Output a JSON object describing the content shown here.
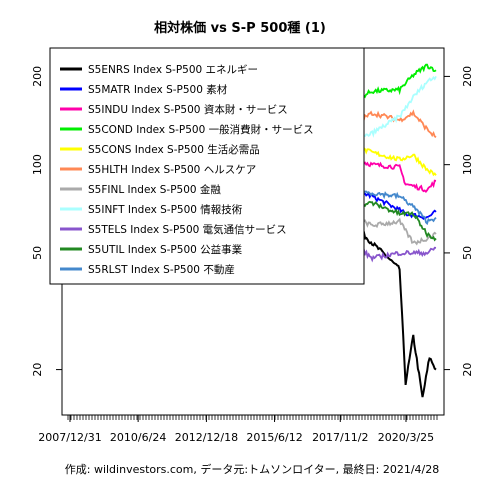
{
  "chart_data": {
    "type": "line",
    "title": "相対株価 vs S-P 500種 (1)",
    "caption": "作成: wildinvestors.com, データ元:トムソンロイター, 最終日: 2021/4/28",
    "y_scale": "log",
    "ylim": [
      14,
      250
    ],
    "y_ticks": [
      20,
      50,
      100,
      200
    ],
    "x_range": [
      "2007-12-31",
      "2021-04-28"
    ],
    "x_tick_labels": [
      "2007/12/31",
      "2010/6/24",
      "2012/12/18",
      "2015/6/12",
      "2017/11/2",
      "2020/3/25"
    ],
    "x_tick_dates": [
      "2007-12-31",
      "2010-06-24",
      "2012-12-18",
      "2015-06-12",
      "2017-11-02",
      "2020-03-25"
    ],
    "grid": false,
    "legend_placement": "top-left",
    "series": [
      {
        "name": "S5ENRS Index S-P500 エネルギー",
        "color": "#000000",
        "x": [
          "2007-12-31",
          "2008-06-30",
          "2008-12-31",
          "2009-06-30",
          "2009-12-31",
          "2010-06-30",
          "2010-12-31",
          "2011-06-30",
          "2011-12-31",
          "2012-06-30",
          "2012-12-31",
          "2013-06-30",
          "2013-12-31",
          "2014-06-30",
          "2014-12-31",
          "2015-06-30",
          "2015-12-31",
          "2016-06-30",
          "2016-12-31",
          "2017-06-30",
          "2017-12-31",
          "2018-06-30",
          "2018-12-31",
          "2019-06-30",
          "2019-12-31",
          "2020-03-20",
          "2020-06-30",
          "2020-10-31",
          "2021-01-31",
          "2021-04-28"
        ],
        "values": [
          100,
          115,
          112,
          102,
          100,
          92,
          98,
          102,
          100,
          90,
          88,
          84,
          85,
          90,
          72,
          68,
          62,
          66,
          72,
          62,
          60,
          60,
          54,
          49,
          44,
          18,
          26,
          16,
          22,
          20
        ]
      },
      {
        "name": "S5MATR Index S-P500 素材",
        "color": "#0000ff",
        "x": [
          "2007-12-31",
          "2008-06-30",
          "2008-12-31",
          "2009-06-30",
          "2009-12-31",
          "2010-12-31",
          "2011-12-31",
          "2012-12-31",
          "2013-12-31",
          "2014-12-31",
          "2015-12-31",
          "2016-12-31",
          "2017-12-31",
          "2018-12-31",
          "2019-12-31",
          "2020-03-20",
          "2020-12-31",
          "2021-04-28"
        ],
        "values": [
          100,
          104,
          88,
          98,
          104,
          106,
          94,
          90,
          86,
          88,
          82,
          84,
          84,
          78,
          70,
          68,
          66,
          69
        ]
      },
      {
        "name": "S5INDU Index S-P500 資本財・サービス",
        "color": "#ff00aa",
        "x": [
          "2007-12-31",
          "2008-12-31",
          "2009-12-31",
          "2010-12-31",
          "2011-12-31",
          "2012-12-31",
          "2013-12-31",
          "2014-12-31",
          "2015-12-31",
          "2016-12-31",
          "2017-12-31",
          "2018-12-31",
          "2019-12-31",
          "2020-03-20",
          "2020-12-31",
          "2021-04-28"
        ],
        "values": [
          100,
          98,
          92,
          100,
          98,
          98,
          108,
          108,
          106,
          108,
          106,
          100,
          98,
          86,
          82,
          88
        ]
      },
      {
        "name": "S5COND Index S-P500 一般消費財・サービス",
        "color": "#00ee00",
        "x": [
          "2007-12-31",
          "2008-12-31",
          "2009-12-31",
          "2010-12-31",
          "2011-12-31",
          "2012-12-31",
          "2013-12-31",
          "2014-12-31",
          "2015-12-31",
          "2016-12-31",
          "2017-12-31",
          "2018-12-31",
          "2019-12-31",
          "2020-06-30",
          "2020-12-31",
          "2021-04-28"
        ],
        "values": [
          100,
          106,
          110,
          122,
          128,
          134,
          142,
          140,
          158,
          156,
          160,
          178,
          180,
          202,
          218,
          210
        ]
      },
      {
        "name": "S5CONS Index S-P500 生活必需品",
        "color": "#ffff00",
        "x": [
          "2007-12-31",
          "2008-12-31",
          "2009-12-31",
          "2010-12-31",
          "2011-12-31",
          "2012-12-31",
          "2013-12-31",
          "2014-12-31",
          "2015-12-31",
          "2016-12-31",
          "2017-12-31",
          "2018-12-31",
          "2019-12-31",
          "2020-06-30",
          "2020-12-31",
          "2021-04-28"
        ],
        "values": [
          100,
          138,
          128,
          126,
          138,
          130,
          128,
          134,
          140,
          128,
          118,
          110,
          104,
          108,
          96,
          92
        ]
      },
      {
        "name": "S5HLTH Index S-P500 ヘルスケア",
        "color": "#ff8855",
        "x": [
          "2007-12-31",
          "2008-12-31",
          "2009-12-31",
          "2010-12-31",
          "2011-12-31",
          "2012-12-31",
          "2013-12-31",
          "2014-12-31",
          "2015-12-31",
          "2016-12-31",
          "2017-12-31",
          "2018-12-31",
          "2019-12-31",
          "2020-06-30",
          "2020-12-31",
          "2021-04-28"
        ],
        "values": [
          100,
          118,
          112,
          104,
          110,
          110,
          122,
          132,
          148,
          134,
          132,
          150,
          142,
          150,
          132,
          124
        ]
      },
      {
        "name": "S5FINL Index S-P500 金融",
        "color": "#aaaaaa",
        "x": [
          "2007-12-31",
          "2008-12-31",
          "2009-03-31",
          "2009-12-31",
          "2010-12-31",
          "2011-12-31",
          "2012-12-31",
          "2013-12-31",
          "2014-12-31",
          "2015-12-31",
          "2016-12-31",
          "2017-12-31",
          "2018-12-31",
          "2019-12-31",
          "2020-06-30",
          "2020-12-31",
          "2021-04-28"
        ],
        "values": [
          100,
          70,
          56,
          62,
          64,
          55,
          60,
          62,
          64,
          62,
          66,
          68,
          62,
          64,
          54,
          56,
          58
        ]
      },
      {
        "name": "S5INFT Index S-P500 情報技術",
        "color": "#aaffff",
        "x": [
          "2007-12-31",
          "2008-12-31",
          "2009-12-31",
          "2010-12-31",
          "2011-12-31",
          "2012-12-31",
          "2013-12-31",
          "2014-12-31",
          "2015-12-31",
          "2016-12-31",
          "2017-12-31",
          "2018-12-31",
          "2019-12-31",
          "2020-06-30",
          "2020-12-31",
          "2021-04-28"
        ],
        "values": [
          100,
          96,
          104,
          96,
          98,
          98,
          92,
          94,
          100,
          104,
          116,
          128,
          146,
          170,
          192,
          200
        ]
      },
      {
        "name": "S5TELS Index S-P500 電気通信サービス",
        "color": "#8855cc",
        "x": [
          "2007-12-31",
          "2008-12-31",
          "2009-12-31",
          "2010-12-31",
          "2011-12-31",
          "2012-12-31",
          "2013-12-31",
          "2014-12-31",
          "2015-12-31",
          "2016-12-31",
          "2017-12-31",
          "2018-06-30",
          "2018-12-31",
          "2019-12-31",
          "2020-12-31",
          "2021-04-28"
        ],
        "values": [
          100,
          88,
          84,
          82,
          80,
          78,
          72,
          66,
          68,
          66,
          58,
          52,
          48,
          50,
          50,
          52
        ]
      },
      {
        "name": "S5UTIL Index S-P500 公益事業",
        "color": "#228822",
        "x": [
          "2007-12-31",
          "2008-12-31",
          "2009-12-31",
          "2010-12-31",
          "2011-12-31",
          "2012-12-31",
          "2013-12-31",
          "2014-12-31",
          "2015-12-31",
          "2016-12-31",
          "2017-12-31",
          "2018-12-31",
          "2019-12-31",
          "2020-06-30",
          "2020-12-31",
          "2021-04-28"
        ],
        "values": [
          100,
          112,
          96,
          90,
          96,
          90,
          80,
          82,
          76,
          78,
          72,
          74,
          68,
          68,
          58,
          56
        ]
      },
      {
        "name": "S5RLST Index S-P500 不動産",
        "color": "#4488cc",
        "x": [
          "2007-12-31",
          "2008-12-31",
          "2009-12-31",
          "2010-12-31",
          "2011-12-31",
          "2012-12-31",
          "2013-12-31",
          "2014-12-31",
          "2015-12-31",
          "2016-12-31",
          "2017-12-31",
          "2018-12-31",
          "2019-12-31",
          "2020-06-30",
          "2020-12-31",
          "2021-04-28"
        ],
        "values": [
          100,
          96,
          74,
          86,
          96,
          98,
          90,
          92,
          96,
          88,
          82,
          80,
          78,
          72,
          64,
          66
        ]
      }
    ]
  }
}
